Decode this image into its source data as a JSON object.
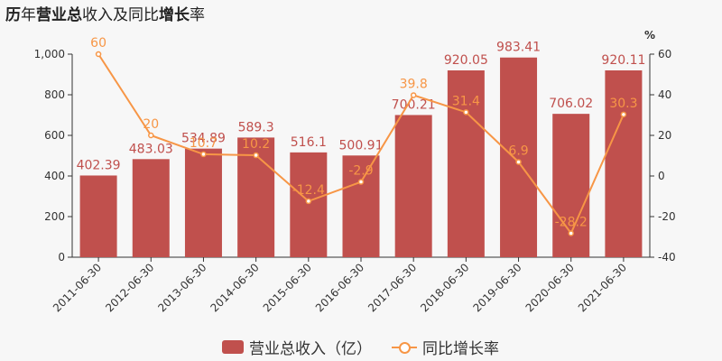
{
  "title": {
    "part1": "历",
    "part2": "年",
    "part3": "营业总",
    "part4": "收入及同比",
    "part5": "增长",
    "part6": "率"
  },
  "chart_data": {
    "type": "bar",
    "categories": [
      "2011-06-30",
      "2012-06-30",
      "2013-06-30",
      "2014-06-30",
      "2015-06-30",
      "2016-06-30",
      "2017-06-30",
      "2018-06-30",
      "2019-06-30",
      "2020-06-30",
      "2021-06-30"
    ],
    "series": [
      {
        "name": "营业总收入（亿）",
        "type": "bar",
        "values": [
          402.39,
          483.03,
          534.89,
          589.3,
          516.1,
          500.91,
          700.21,
          920.05,
          983.41,
          706.02,
          920.11
        ],
        "labels": [
          "402.39",
          "483.03",
          "534.89",
          "589.3",
          "516.1",
          "500.91",
          "700.21",
          "920.05",
          "983.41",
          "706.02",
          "920.11"
        ],
        "color": "#c0504d"
      },
      {
        "name": "同比增长率",
        "type": "line",
        "values": [
          60,
          20,
          10.7,
          10.2,
          -12.4,
          -2.9,
          39.8,
          31.4,
          6.9,
          -28.2,
          30.3
        ],
        "labels": [
          "60",
          "20",
          "10.7",
          "10.2",
          "-12.4",
          "-2.9",
          "39.8",
          "31.4",
          "6.9",
          "-28.2",
          "30.3"
        ],
        "color": "#f79646"
      }
    ],
    "left_axis": {
      "ticks": [
        "0",
        "200",
        "400",
        "600",
        "800",
        "1,000"
      ],
      "range": [
        0,
        1000
      ]
    },
    "right_axis": {
      "ticks": [
        "-40",
        "-20",
        "0",
        "20",
        "40",
        "60"
      ],
      "range": [
        -40,
        60
      ],
      "unit": "%"
    },
    "legend": {
      "position": "bottom",
      "items": [
        "营业总收入（亿）",
        "同比增长率"
      ]
    }
  }
}
